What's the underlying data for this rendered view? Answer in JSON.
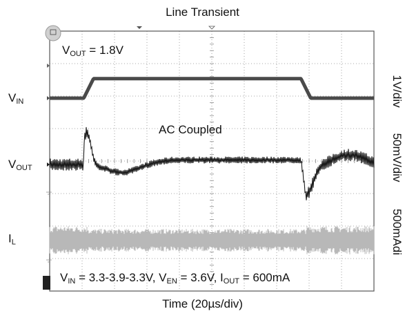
{
  "chart_data": {
    "type": "line",
    "title": "Line Transient",
    "xlabel": "Time (20µs/div)",
    "x_divisions": 10,
    "y_divisions": 8,
    "conditions": {
      "parts": [
        {
          "main": "V",
          "sub": "IN",
          "rest": " = 3.3-3.9-3.3V, "
        },
        {
          "main": "V",
          "sub": "EN",
          "rest": " = 3.6V, "
        },
        {
          "main": "I",
          "sub": "OUT",
          "rest": " = 600mA"
        }
      ]
    },
    "vout_setting": {
      "main": "V",
      "sub": "OUT",
      "rest": " = 1.8V"
    },
    "annotation": "AC Coupled",
    "channels": [
      {
        "id": "vin",
        "label_main": "V",
        "label_sub": "IN",
        "scale": "1V/div",
        "color": "#4a4a4a",
        "events_us": [
          21,
          27,
          155,
          161
        ],
        "levels_V": [
          3.3,
          3.9,
          3.3
        ]
      },
      {
        "id": "vout",
        "label_main": "V",
        "label_sub": "OUT",
        "scale": "50mV/div",
        "color": "#1a1a1a",
        "coupling": "AC",
        "overshoot_mV": 50,
        "overshoot_time_us": 23,
        "dip_mV": -13,
        "settle_mV": 7,
        "undershoot_mV": -47,
        "undershoot_time_us": 159
      },
      {
        "id": "il",
        "label_main": "I",
        "label_sub": "L",
        "scale": "500mAdi",
        "color": "#b8b8b8",
        "mean_mA": 600,
        "ripple_low_vin_mApp": 440,
        "ripple_high_vin_mApp": 350
      }
    ]
  },
  "colors": {
    "grid": "#8a8a8a",
    "frame": "#555555",
    "marker": "#666666"
  }
}
